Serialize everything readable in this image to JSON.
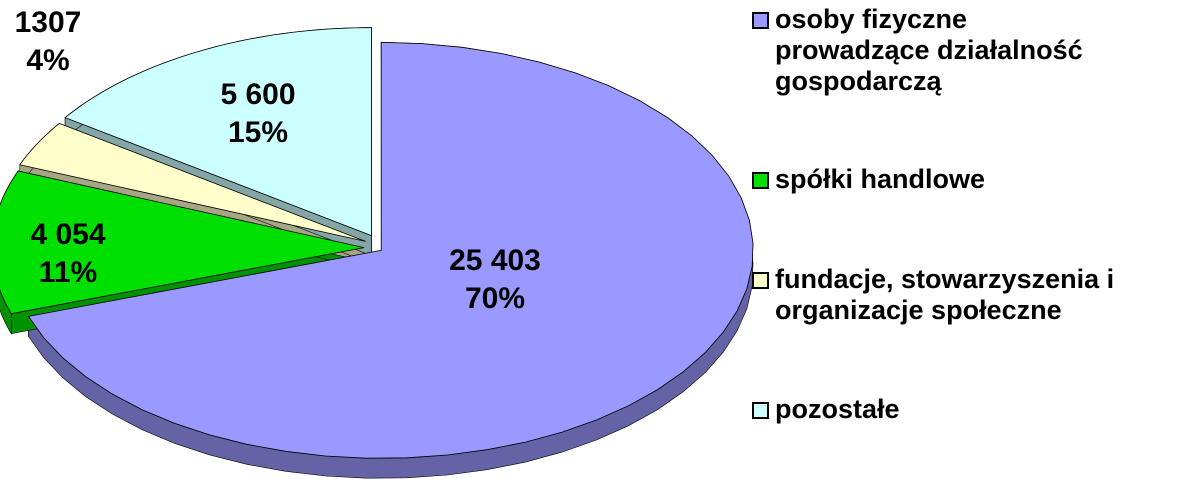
{
  "chart_data": {
    "type": "pie3d",
    "categories": [
      "osoby fizyczne prowadzące działalność gospodarczą",
      "spółki handlowe",
      "fundacje, stowarzyszenia i organizacje społeczne",
      "pozostałe"
    ],
    "values": [
      25403,
      4054,
      1307,
      5600
    ],
    "value_labels": [
      "25 403",
      "4 054",
      "1307",
      "5 600"
    ],
    "percents": [
      70,
      11,
      4,
      15
    ],
    "percent_labels": [
      "70%",
      "11%",
      "4%",
      "15%"
    ],
    "colors": [
      "#9999ff",
      "#00e000",
      "#ffffcc",
      "#ccffff"
    ],
    "legend": "right"
  }
}
